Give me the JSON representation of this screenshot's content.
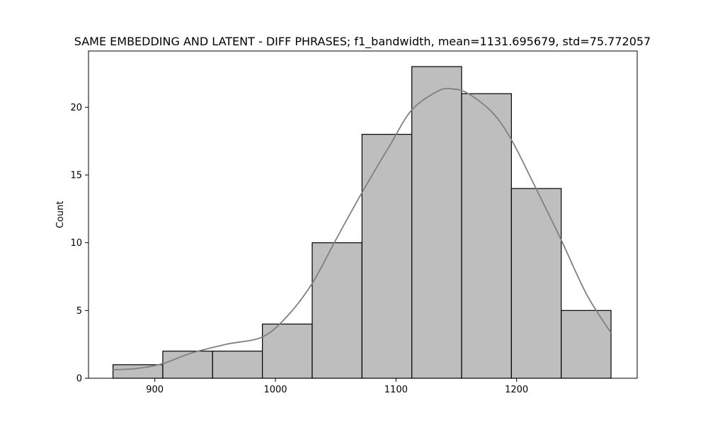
{
  "chart_data": {
    "type": "bar",
    "subtype": "histogram-with-kde",
    "title": "SAME EMBEDDING AND LATENT - DIFF PHRASES; f1_bandwidth, mean=1131.695679, std=75.772057",
    "xlabel": "",
    "ylabel": "Count",
    "xlim": [
      845,
      1300
    ],
    "ylim": [
      0,
      24.15
    ],
    "x_ticks": [
      900,
      1000,
      1100,
      1200
    ],
    "y_ticks": [
      0,
      5,
      10,
      15,
      20
    ],
    "bins": [
      {
        "x0": 865.3,
        "x1": 906.6,
        "count": 1
      },
      {
        "x0": 906.6,
        "x1": 947.9,
        "count": 2
      },
      {
        "x0": 947.9,
        "x1": 989.2,
        "count": 2
      },
      {
        "x0": 989.2,
        "x1": 1030.5,
        "count": 4
      },
      {
        "x0": 1030.5,
        "x1": 1071.8,
        "count": 10
      },
      {
        "x0": 1071.8,
        "x1": 1113.1,
        "count": 18
      },
      {
        "x0": 1113.1,
        "x1": 1154.4,
        "count": 23
      },
      {
        "x0": 1154.4,
        "x1": 1195.7,
        "count": 21
      },
      {
        "x0": 1195.7,
        "x1": 1237.0,
        "count": 14
      },
      {
        "x0": 1237.0,
        "x1": 1278.3,
        "count": 5
      }
    ],
    "kde": {
      "x": [
        865.3,
        885,
        906.6,
        930,
        960,
        989.2,
        1010,
        1030.5,
        1050,
        1071.8,
        1095,
        1113.1,
        1135,
        1147,
        1160,
        1180,
        1195.7,
        1215,
        1237.0,
        1258,
        1278.3
      ],
      "y": [
        0.63,
        0.72,
        1.08,
        1.85,
        2.52,
        3.05,
        4.6,
        7.0,
        10.2,
        13.7,
        17.2,
        19.8,
        21.2,
        21.35,
        21.0,
        19.6,
        17.6,
        14.2,
        10.2,
        6.2,
        3.35
      ]
    },
    "grid": false,
    "legend": "none",
    "colors": {
      "bar_fill": "#bebebe",
      "bar_edge": "#000000",
      "kde_line": "#808080"
    }
  }
}
